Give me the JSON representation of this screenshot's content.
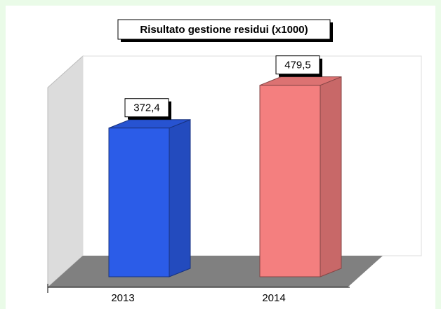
{
  "chart_data": {
    "type": "bar",
    "title": "Risultato gestione residui (x1000)",
    "categories": [
      "2013",
      "2014"
    ],
    "values": [
      372.4,
      479.5
    ],
    "value_labels": [
      "372,4",
      "479,5"
    ],
    "colors": [
      "#2b5ce8",
      "#f47f7f"
    ],
    "ylim": [
      0,
      500
    ]
  }
}
